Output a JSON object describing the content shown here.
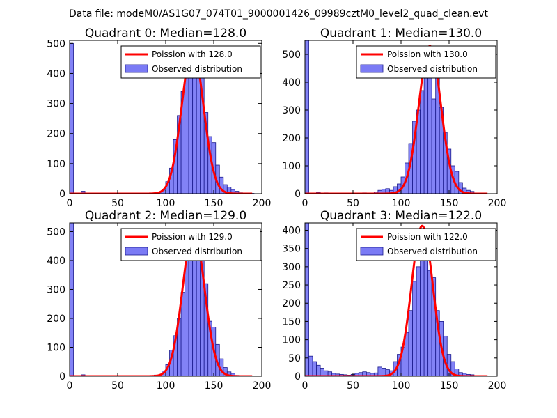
{
  "figure": {
    "suptitle": "Data file: modeM0/AS1G07_074T01_9000001426_09989cztM0_level2_quad_clean.evt"
  },
  "colors": {
    "bar_fill": "#7b7bf5",
    "bar_edge": "#1a1a8c",
    "fit_line": "#ff0000"
  },
  "chart_data": [
    {
      "type": "bar",
      "title": "Quadrant 0: Median=128.0",
      "xlim": [
        0,
        200
      ],
      "ylim": [
        0,
        510
      ],
      "xticks": [
        0,
        50,
        100,
        150,
        200
      ],
      "yticks": [
        0,
        100,
        200,
        300,
        400,
        500
      ],
      "bin_width": 4,
      "legend": {
        "fit_label": "Poission with 128.0",
        "hist_label": "Observed distribution",
        "position": "upper right"
      },
      "fit": {
        "mean": 128,
        "peak": 483
      },
      "bins": [
        [
          0,
          500
        ],
        [
          12,
          8
        ],
        [
          88,
          2
        ],
        [
          92,
          5
        ],
        [
          96,
          12
        ],
        [
          100,
          40
        ],
        [
          104,
          85
        ],
        [
          108,
          180
        ],
        [
          112,
          260
        ],
        [
          116,
          340
        ],
        [
          120,
          420
        ],
        [
          124,
          470
        ],
        [
          128,
          480
        ],
        [
          132,
          410
        ],
        [
          136,
          400
        ],
        [
          140,
          270
        ],
        [
          144,
          190
        ],
        [
          148,
          170
        ],
        [
          152,
          95
        ],
        [
          156,
          55
        ],
        [
          160,
          30
        ],
        [
          164,
          22
        ],
        [
          168,
          14
        ],
        [
          172,
          8
        ],
        [
          176,
          3
        ],
        [
          188,
          1
        ]
      ]
    },
    {
      "type": "bar",
      "title": "Quadrant 1: Median=130.0",
      "xlim": [
        0,
        200
      ],
      "ylim": [
        0,
        550
      ],
      "xticks": [
        0,
        50,
        100,
        150,
        200
      ],
      "yticks": [
        0,
        100,
        200,
        300,
        400,
        500
      ],
      "bin_width": 4,
      "legend": {
        "fit_label": "Poission with 130.0",
        "hist_label": "Observed distribution",
        "position": "upper right"
      },
      "fit": {
        "mean": 130,
        "peak": 530
      },
      "bins": [
        [
          0,
          550
        ],
        [
          12,
          5
        ],
        [
          20,
          3
        ],
        [
          60,
          3
        ],
        [
          72,
          6
        ],
        [
          76,
          12
        ],
        [
          80,
          16
        ],
        [
          84,
          18
        ],
        [
          88,
          12
        ],
        [
          92,
          25
        ],
        [
          96,
          35
        ],
        [
          100,
          60
        ],
        [
          104,
          110
        ],
        [
          108,
          180
        ],
        [
          112,
          260
        ],
        [
          116,
          300
        ],
        [
          120,
          370
        ],
        [
          124,
          460
        ],
        [
          128,
          520
        ],
        [
          132,
          340
        ],
        [
          136,
          420
        ],
        [
          140,
          310
        ],
        [
          144,
          220
        ],
        [
          148,
          160
        ],
        [
          152,
          100
        ],
        [
          156,
          80
        ],
        [
          160,
          40
        ],
        [
          164,
          20
        ],
        [
          168,
          12
        ],
        [
          172,
          8
        ],
        [
          180,
          2
        ]
      ]
    },
    {
      "type": "bar",
      "title": "Quadrant 2: Median=129.0",
      "xlim": [
        0,
        200
      ],
      "ylim": [
        0,
        530
      ],
      "xticks": [
        0,
        50,
        100,
        150,
        200
      ],
      "yticks": [
        0,
        100,
        200,
        300,
        400,
        500
      ],
      "bin_width": 4,
      "legend": {
        "fit_label": "Poission with 129.0",
        "hist_label": "Observed distribution",
        "position": "upper right"
      },
      "fit": {
        "mean": 129,
        "peak": 505
      },
      "bins": [
        [
          0,
          530
        ],
        [
          12,
          5
        ],
        [
          84,
          2
        ],
        [
          88,
          4
        ],
        [
          96,
          18
        ],
        [
          100,
          40
        ],
        [
          104,
          90
        ],
        [
          108,
          140
        ],
        [
          112,
          200
        ],
        [
          116,
          290
        ],
        [
          120,
          400
        ],
        [
          124,
          470
        ],
        [
          128,
          500
        ],
        [
          132,
          430
        ],
        [
          136,
          410
        ],
        [
          140,
          320
        ],
        [
          144,
          190
        ],
        [
          148,
          170
        ],
        [
          152,
          110
        ],
        [
          156,
          60
        ],
        [
          160,
          30
        ],
        [
          164,
          15
        ],
        [
          168,
          10
        ],
        [
          172,
          3
        ]
      ]
    },
    {
      "type": "bar",
      "title": "Quadrant 3: Median=122.0",
      "xlim": [
        0,
        200
      ],
      "ylim": [
        0,
        420
      ],
      "xticks": [
        0,
        50,
        100,
        150,
        200
      ],
      "yticks": [
        0,
        50,
        100,
        150,
        200,
        250,
        300,
        350,
        400
      ],
      "bin_width": 4,
      "legend": {
        "fit_label": "Poission with 122.0",
        "hist_label": "Observed distribution",
        "position": "upper right"
      },
      "fit": {
        "mean": 122,
        "peak": 412
      },
      "bins": [
        [
          0,
          420
        ],
        [
          4,
          55
        ],
        [
          8,
          40
        ],
        [
          12,
          30
        ],
        [
          16,
          22
        ],
        [
          20,
          15
        ],
        [
          24,
          12
        ],
        [
          28,
          8
        ],
        [
          32,
          6
        ],
        [
          36,
          5
        ],
        [
          40,
          4
        ],
        [
          44,
          3
        ],
        [
          48,
          5
        ],
        [
          52,
          8
        ],
        [
          56,
          10
        ],
        [
          60,
          12
        ],
        [
          64,
          10
        ],
        [
          68,
          8
        ],
        [
          72,
          9
        ],
        [
          76,
          25
        ],
        [
          80,
          22
        ],
        [
          84,
          18
        ],
        [
          88,
          15
        ],
        [
          92,
          40
        ],
        [
          96,
          60
        ],
        [
          100,
          80
        ],
        [
          104,
          120
        ],
        [
          108,
          180
        ],
        [
          112,
          260
        ],
        [
          116,
          300
        ],
        [
          120,
          360
        ],
        [
          124,
          380
        ],
        [
          128,
          290
        ],
        [
          132,
          270
        ],
        [
          136,
          180
        ],
        [
          140,
          150
        ],
        [
          144,
          110
        ],
        [
          148,
          60
        ],
        [
          152,
          40
        ],
        [
          156,
          20
        ],
        [
          160,
          10
        ],
        [
          164,
          8
        ],
        [
          168,
          5
        ],
        [
          172,
          4
        ],
        [
          176,
          2
        ]
      ]
    }
  ]
}
